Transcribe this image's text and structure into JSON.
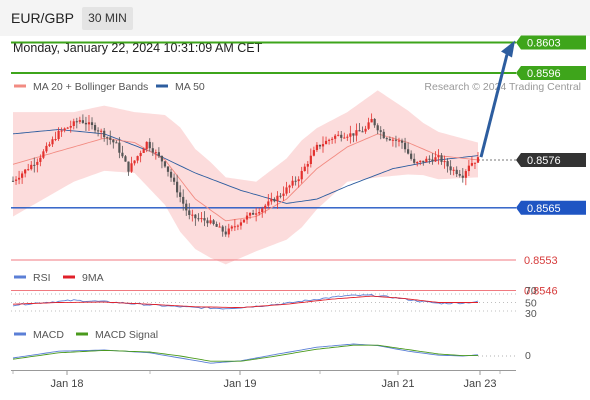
{
  "header": {
    "symbol": "EUR/GBP",
    "timeframe": "30 MIN",
    "datetime": "Monday, January 22, 2024 10:31:09 AM CET"
  },
  "legend": {
    "main": [
      {
        "label": "MA 20 + Bollinger Bands",
        "color": "#f28b82"
      },
      {
        "label": "MA 50",
        "color": "#2d5d9f"
      }
    ],
    "credit": "Research © 2024 Trading Central",
    "rsi": [
      {
        "label": "RSI",
        "color": "#5b7fd6"
      },
      {
        "label": "9MA",
        "color": "#e0202a"
      }
    ],
    "macd": [
      {
        "label": "MACD",
        "color": "#5b7fd6"
      },
      {
        "label": "MACD Signal",
        "color": "#4a9a1c"
      }
    ]
  },
  "colors": {
    "bull": "#e3312e",
    "bear": "#555555",
    "resistance": "#3ea51b",
    "support": "#1f55c3",
    "target": "#f07a80",
    "current": "#333333",
    "band": "#fbd6d6",
    "arrow": "#2d5d9f"
  },
  "chart_data": [
    {
      "type": "candlestick",
      "title": "EUR/GBP 30 MIN",
      "x_ticks": [
        "Jan 18",
        "Jan 19",
        "Jan 21",
        "Jan 23"
      ],
      "ylim": [
        0.8543,
        0.8605
      ],
      "levels": [
        {
          "kind": "resistance",
          "value": 0.8603,
          "label": "0.8603"
        },
        {
          "kind": "resistance",
          "value": 0.8596,
          "label": "0.8596"
        },
        {
          "kind": "current",
          "value": 0.8576,
          "label": "0.8576"
        },
        {
          "kind": "support",
          "value": 0.8565,
          "label": "0.8565"
        },
        {
          "kind": "target",
          "value": 0.8553,
          "label": "0.8553"
        },
        {
          "kind": "target",
          "value": 0.8546,
          "label": "0.8546"
        }
      ],
      "path_knots": [
        [
          0,
          0.85712
        ],
        [
          8,
          0.8576
        ],
        [
          15,
          0.85822
        ],
        [
          22,
          0.85852
        ],
        [
          28,
          0.8583
        ],
        [
          34,
          0.85795
        ],
        [
          38,
          0.85738
        ],
        [
          44,
          0.858
        ],
        [
          50,
          0.8575
        ],
        [
          54,
          0.8569
        ],
        [
          58,
          0.8563
        ],
        [
          64,
          0.8562
        ],
        [
          70,
          0.85592
        ],
        [
          76,
          0.85625
        ],
        [
          82,
          0.8565
        ],
        [
          88,
          0.8568
        ],
        [
          94,
          0.8572
        ],
        [
          100,
          0.8579
        ],
        [
          106,
          0.85815
        ],
        [
          112,
          0.8582
        ],
        [
          116,
          0.8583
        ],
        [
          118,
          0.85852
        ],
        [
          122,
          0.85815
        ],
        [
          128,
          0.858
        ],
        [
          132,
          0.8575
        ],
        [
          136,
          0.8576
        ],
        [
          140,
          0.85765
        ],
        [
          144,
          0.8574
        ],
        [
          148,
          0.85725
        ],
        [
          150,
          0.8575
        ],
        [
          153,
          0.85762
        ]
      ],
      "forecast_target": 0.8603,
      "ma20_knots": [
        [
          0,
          0.8575
        ],
        [
          20,
          0.8579
        ],
        [
          30,
          0.8581
        ],
        [
          40,
          0.858
        ],
        [
          50,
          0.8576
        ],
        [
          60,
          0.8567
        ],
        [
          70,
          0.8562
        ],
        [
          80,
          0.8563
        ],
        [
          90,
          0.8567
        ],
        [
          100,
          0.8574
        ],
        [
          110,
          0.8579
        ],
        [
          120,
          0.8582
        ],
        [
          130,
          0.858
        ],
        [
          140,
          0.8577
        ],
        [
          153,
          0.8576
        ]
      ],
      "ma50_knots": [
        [
          0,
          0.8582
        ],
        [
          15,
          0.8583
        ],
        [
          30,
          0.8582
        ],
        [
          45,
          0.8578
        ],
        [
          60,
          0.8573
        ],
        [
          75,
          0.8569
        ],
        [
          90,
          0.8566
        ],
        [
          100,
          0.8567
        ],
        [
          110,
          0.857
        ],
        [
          125,
          0.8574
        ],
        [
          140,
          0.8576
        ],
        [
          153,
          0.8577
        ]
      ],
      "band_width_knots": [
        [
          0,
          0.0012
        ],
        [
          20,
          0.0008
        ],
        [
          40,
          0.0007
        ],
        [
          55,
          0.0012
        ],
        [
          65,
          0.0011
        ],
        [
          80,
          0.0008
        ],
        [
          95,
          0.001
        ],
        [
          110,
          0.0008
        ],
        [
          120,
          0.001
        ],
        [
          135,
          0.0006
        ],
        [
          153,
          0.0004
        ]
      ]
    },
    {
      "type": "line",
      "title": "RSI",
      "ylim": [
        25,
        80
      ],
      "y_ticks": [
        "70",
        "50",
        "30"
      ],
      "rsi_knots": [
        [
          0,
          44
        ],
        [
          10,
          50
        ],
        [
          20,
          55
        ],
        [
          30,
          52
        ],
        [
          40,
          47
        ],
        [
          50,
          42
        ],
        [
          60,
          38
        ],
        [
          70,
          36
        ],
        [
          80,
          41
        ],
        [
          90,
          48
        ],
        [
          100,
          58
        ],
        [
          110,
          66
        ],
        [
          118,
          67
        ],
        [
          125,
          62
        ],
        [
          135,
          52
        ],
        [
          140,
          48
        ],
        [
          148,
          49
        ],
        [
          153,
          52
        ]
      ],
      "ma9_knots": [
        [
          0,
          46
        ],
        [
          15,
          50
        ],
        [
          30,
          51
        ],
        [
          45,
          46
        ],
        [
          60,
          40
        ],
        [
          75,
          38
        ],
        [
          90,
          46
        ],
        [
          105,
          58
        ],
        [
          118,
          65
        ],
        [
          128,
          60
        ],
        [
          140,
          50
        ],
        [
          153,
          50
        ]
      ]
    },
    {
      "type": "line",
      "title": "MACD",
      "y_ticks": [
        "0"
      ],
      "ylim": [
        -0.0006,
        0.0006
      ],
      "macd_knots": [
        [
          0,
          -5e-05
        ],
        [
          15,
          0.00012
        ],
        [
          30,
          0.00015
        ],
        [
          45,
          8e-05
        ],
        [
          55,
          -5e-05
        ],
        [
          65,
          -0.00018
        ],
        [
          75,
          -0.00012
        ],
        [
          85,
          2e-05
        ],
        [
          100,
          0.00022
        ],
        [
          112,
          0.0003
        ],
        [
          120,
          0.00026
        ],
        [
          130,
          0.00012
        ],
        [
          140,
          2e-05
        ],
        [
          148,
          0.0
        ],
        [
          153,
          3e-05
        ]
      ],
      "signal_knots": [
        [
          0,
          -8e-05
        ],
        [
          15,
          8e-05
        ],
        [
          30,
          0.00014
        ],
        [
          45,
          0.0001
        ],
        [
          55,
          0.0
        ],
        [
          65,
          -0.00013
        ],
        [
          75,
          -0.00013
        ],
        [
          85,
          -2e-05
        ],
        [
          100,
          0.00017
        ],
        [
          112,
          0.00027
        ],
        [
          120,
          0.00027
        ],
        [
          130,
          0.00016
        ],
        [
          140,
          5e-05
        ],
        [
          148,
          1e-05
        ],
        [
          153,
          1e-05
        ]
      ]
    }
  ]
}
